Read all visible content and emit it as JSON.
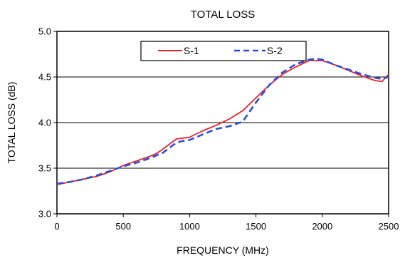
{
  "chart_data": {
    "type": "line",
    "title": "TOTAL  LOSS",
    "xlabel": "FREQUENCY (MHz)",
    "ylabel": "TOTAL  LOSS (dB)",
    "xlim": [
      0,
      2500
    ],
    "ylim": [
      3.0,
      5.0
    ],
    "x_ticks": [
      "0",
      "500",
      "1000",
      "1500",
      "2000",
      "2500"
    ],
    "y_ticks": [
      "3.0",
      "3.5",
      "4.0",
      "4.5",
      "5.0"
    ],
    "grid": "horizontal",
    "legend_position": "top-center",
    "series": [
      {
        "name": "S-1",
        "color": "#e8202a",
        "style": "solid",
        "x": [
          0,
          100,
          200,
          300,
          400,
          500,
          600,
          700,
          750,
          800,
          900,
          950,
          1000,
          1100,
          1200,
          1300,
          1400,
          1500,
          1600,
          1700,
          1800,
          1900,
          2000,
          2100,
          2200,
          2300,
          2400,
          2450,
          2500
        ],
        "y": [
          3.32,
          3.35,
          3.38,
          3.41,
          3.46,
          3.53,
          3.58,
          3.63,
          3.66,
          3.71,
          3.82,
          3.83,
          3.84,
          3.91,
          3.97,
          4.04,
          4.13,
          4.27,
          4.41,
          4.53,
          4.61,
          4.68,
          4.68,
          4.63,
          4.57,
          4.51,
          4.46,
          4.45,
          4.53
        ]
      },
      {
        "name": "S-2",
        "color": "#2b4fd8",
        "style": "dashed",
        "x": [
          0,
          100,
          200,
          300,
          400,
          500,
          600,
          700,
          800,
          900,
          950,
          1000,
          1100,
          1200,
          1300,
          1400,
          1500,
          1600,
          1700,
          1800,
          1900,
          1950,
          2000,
          2100,
          2200,
          2300,
          2400,
          2450,
          2500
        ],
        "y": [
          3.33,
          3.35,
          3.38,
          3.42,
          3.47,
          3.52,
          3.56,
          3.61,
          3.67,
          3.78,
          3.8,
          3.81,
          3.87,
          3.93,
          3.96,
          4.01,
          4.22,
          4.41,
          4.55,
          4.64,
          4.69,
          4.7,
          4.69,
          4.63,
          4.58,
          4.53,
          4.49,
          4.48,
          4.5
        ]
      }
    ]
  }
}
